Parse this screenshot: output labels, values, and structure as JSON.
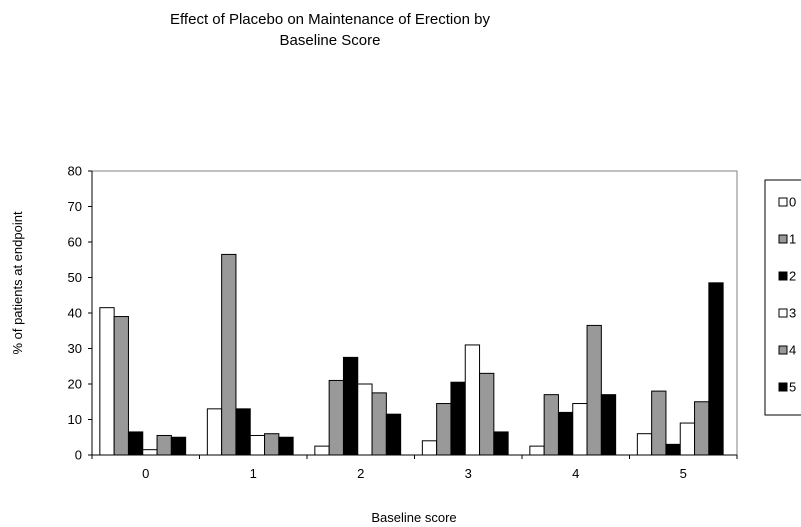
{
  "chart_data": {
    "type": "bar",
    "title_lines": [
      "Effect of Placebo on Maintenance of Erection by",
      "Baseline Score"
    ],
    "xlabel": "Baseline score",
    "ylabel": "% of patients at endpoint",
    "categories": [
      "0",
      "1",
      "2",
      "3",
      "4",
      "5"
    ],
    "yticks": [
      "0",
      "10",
      "20",
      "30",
      "40",
      "50",
      "60",
      "70",
      "80"
    ],
    "ylim": [
      0,
      80
    ],
    "grid": false,
    "legend_position": "right",
    "series": [
      {
        "name": "0",
        "color": "#ffffff",
        "values": [
          41.5,
          13,
          2.5,
          4,
          2.5,
          6
        ]
      },
      {
        "name": "1",
        "color": "#999999",
        "values": [
          39,
          56.5,
          21,
          14.5,
          17,
          18
        ]
      },
      {
        "name": "2",
        "color": "#000000",
        "values": [
          6.5,
          13,
          27.5,
          20.5,
          12,
          3
        ]
      },
      {
        "name": "3",
        "color": "#ffffff",
        "values": [
          1.5,
          5.5,
          20,
          31,
          14.5,
          9
        ]
      },
      {
        "name": "4",
        "color": "#999999",
        "values": [
          5.5,
          6,
          17.5,
          23,
          36.5,
          15
        ]
      },
      {
        "name": "5",
        "color": "#000000",
        "values": [
          5,
          5,
          11.5,
          6.5,
          17,
          48.5
        ]
      }
    ]
  }
}
